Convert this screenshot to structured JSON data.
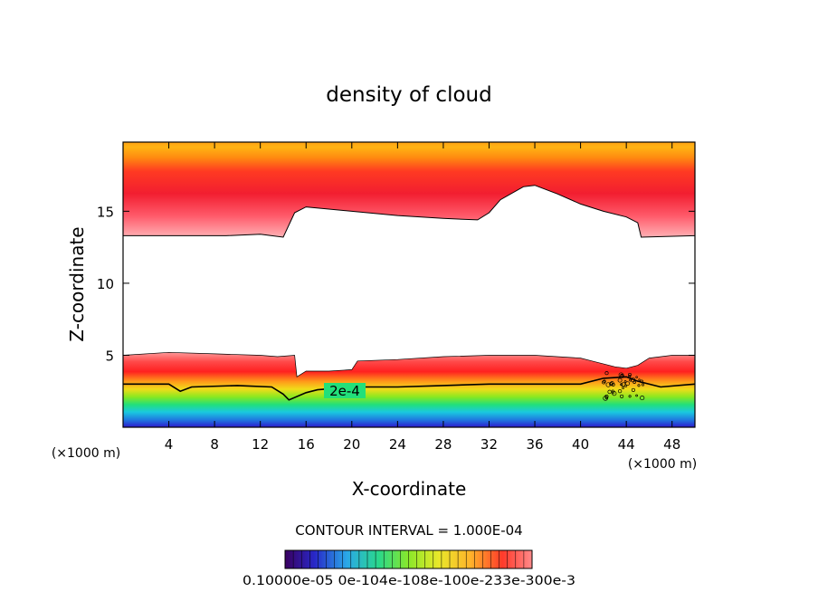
{
  "chart_data": {
    "type": "heatmap",
    "title": "density of cloud",
    "xlabel": "X-coordinate",
    "ylabel": "Z-coordinate",
    "x_unit_left": "(×1000 m)",
    "x_unit_right": "(×1000 m)",
    "xlim": [
      0,
      50
    ],
    "ylim": [
      0,
      19.8
    ],
    "x_ticks": [
      4,
      8,
      12,
      16,
      20,
      24,
      28,
      32,
      36,
      40,
      44,
      48
    ],
    "y_ticks": [
      5,
      10,
      15
    ],
    "contour_interval_text": "CONTOUR INTERVAL = 1.000E-04",
    "contour_label": "2e-4",
    "colorbar_labels_text": "0.10000e-05 0e-104e-108e-100e-233e-300e-3",
    "colorbar_range": [
      1e-06,
      0.003
    ],
    "palette": [
      "#4b0082",
      "#1e2fd0",
      "#1f9fe8",
      "#1fd48a",
      "#40e020",
      "#c8e81a",
      "#ffd21a",
      "#ff8a1a",
      "#ff2a2a",
      "#ff7f7f"
    ],
    "cloud_layers": {
      "upper_bottom": [
        [
          0,
          13.3
        ],
        [
          3,
          13.3
        ],
        [
          9,
          13.3
        ],
        [
          12,
          13.4
        ],
        [
          13,
          13.3
        ],
        [
          14,
          13.2
        ],
        [
          15,
          14.9
        ],
        [
          16,
          15.3
        ],
        [
          20,
          15.0
        ],
        [
          24,
          14.7
        ],
        [
          28,
          14.5
        ],
        [
          31,
          14.4
        ],
        [
          32,
          14.9
        ],
        [
          33,
          15.8
        ],
        [
          35,
          16.7
        ],
        [
          36,
          16.8
        ],
        [
          38,
          16.2
        ],
        [
          40,
          15.5
        ],
        [
          42,
          15.0
        ],
        [
          44,
          14.6
        ],
        [
          45,
          14.2
        ],
        [
          45.3,
          13.2
        ],
        [
          50,
          13.3
        ]
      ],
      "lower_top": [
        [
          0,
          5.0
        ],
        [
          4,
          5.2
        ],
        [
          8,
          5.1
        ],
        [
          12,
          5.0
        ],
        [
          13.5,
          4.9
        ],
        [
          15,
          5.0
        ],
        [
          15.2,
          3.5
        ],
        [
          16,
          3.9
        ],
        [
          18,
          3.9
        ],
        [
          20,
          4.0
        ],
        [
          20.5,
          4.6
        ],
        [
          24,
          4.7
        ],
        [
          28,
          4.9
        ],
        [
          32,
          5.0
        ],
        [
          36,
          5.0
        ],
        [
          40,
          4.8
        ],
        [
          41,
          4.6
        ],
        [
          43,
          4.2
        ],
        [
          44,
          4.1
        ],
        [
          45,
          4.3
        ],
        [
          46,
          4.8
        ],
        [
          48,
          5.0
        ],
        [
          50,
          5.0
        ]
      ],
      "contour_2e4": [
        [
          0,
          3.0
        ],
        [
          4,
          3.0
        ],
        [
          5,
          2.5
        ],
        [
          6,
          2.8
        ],
        [
          10,
          2.9
        ],
        [
          13,
          2.8
        ],
        [
          14,
          2.3
        ],
        [
          14.5,
          1.9
        ],
        [
          16,
          2.4
        ],
        [
          17,
          2.6
        ],
        [
          20,
          2.8
        ],
        [
          24,
          2.8
        ],
        [
          28,
          2.9
        ],
        [
          32,
          3.0
        ],
        [
          36,
          3.0
        ],
        [
          40,
          3.0
        ],
        [
          42,
          3.4
        ],
        [
          44,
          3.5
        ],
        [
          45,
          3.2
        ],
        [
          47,
          2.8
        ],
        [
          50,
          3.0
        ]
      ]
    }
  }
}
